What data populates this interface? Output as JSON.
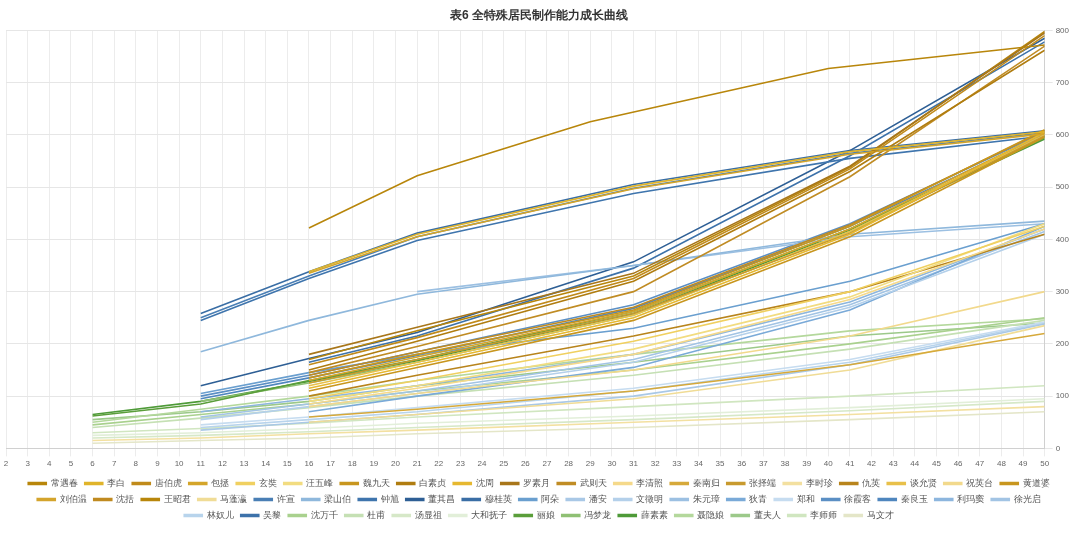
{
  "chart_data": {
    "type": "line",
    "title": "表6 全特殊居民制作能力成长曲线",
    "xlim": [
      2,
      50
    ],
    "xticks": [
      2,
      3,
      4,
      5,
      6,
      7,
      8,
      9,
      10,
      11,
      12,
      13,
      14,
      15,
      16,
      17,
      18,
      19,
      20,
      21,
      22,
      23,
      24,
      25,
      26,
      27,
      28,
      29,
      30,
      31,
      32,
      33,
      34,
      35,
      36,
      37,
      38,
      39,
      40,
      41,
      42,
      43,
      44,
      45,
      46,
      47,
      48,
      49,
      50
    ],
    "ylim": [
      0,
      800
    ],
    "yticks": [
      0,
      100,
      200,
      300,
      400,
      500,
      600,
      700,
      800
    ],
    "grid": true,
    "legend": "bottom",
    "series": [
      {
        "name": "常遇春",
        "color": "#b8860b",
        "x": [
          16,
          21,
          29,
          40,
          50
        ],
        "values": [
          422,
          522,
          625,
          727,
          772
        ]
      },
      {
        "name": "李白",
        "color": "#e0b42a",
        "x": [
          16,
          21,
          31,
          41,
          50
        ],
        "values": [
          338,
          410,
          502,
          568,
          606
        ]
      },
      {
        "name": "唐伯虎",
        "color": "#c08a1a",
        "x": [
          16,
          21,
          31,
          41,
          50
        ],
        "values": [
          160,
          212,
          325,
          535,
          790
        ]
      },
      {
        "name": "包拯",
        "color": "#d4a52a",
        "x": [
          16,
          21,
          31,
          41,
          50
        ],
        "values": [
          335,
          405,
          497,
          563,
          602
        ]
      },
      {
        "name": "玄奘",
        "color": "#f0d060",
        "x": [
          16,
          21,
          31,
          41,
          50
        ],
        "values": [
          95,
          130,
          205,
          300,
          425
        ]
      },
      {
        "name": "汪五峰",
        "color": "#f2dc80",
        "x": [
          16,
          21,
          31,
          41,
          50
        ],
        "values": [
          90,
          120,
          190,
          290,
          430
        ]
      },
      {
        "name": "魏九天",
        "color": "#c8961e",
        "x": [
          16,
          21,
          31,
          41,
          50
        ],
        "values": [
          110,
          155,
          245,
          405,
          596
        ]
      },
      {
        "name": "白素贞",
        "color": "#b07d10",
        "x": [
          16,
          21,
          31,
          41,
          50
        ],
        "values": [
          150,
          205,
          320,
          530,
          762
        ]
      },
      {
        "name": "沈周",
        "color": "#e6b830",
        "x": [
          16,
          21,
          31,
          41,
          50
        ],
        "values": [
          115,
          160,
          250,
          410,
          605
        ]
      },
      {
        "name": "罗素月",
        "color": "#a8761a",
        "x": [
          16,
          21,
          31,
          41,
          50
        ],
        "values": [
          180,
          232,
          335,
          540,
          795
        ]
      },
      {
        "name": "武则天",
        "color": "#c08c24",
        "x": [
          16,
          21,
          31,
          41,
          50
        ],
        "values": [
          145,
          195,
          300,
          520,
          770
        ]
      },
      {
        "name": "李清照",
        "color": "#f5d98a",
        "x": [
          16,
          21,
          31,
          41,
          50
        ],
        "values": [
          85,
          115,
          180,
          285,
          420
        ]
      },
      {
        "name": "秦南归",
        "color": "#d6a93a",
        "x": [
          16,
          21,
          31,
          41,
          50
        ],
        "values": [
          60,
          75,
          110,
          160,
          220
        ]
      },
      {
        "name": "张择端",
        "color": "#c89a2e",
        "x": [
          16,
          21,
          31,
          41,
          50
        ],
        "values": [
          125,
          170,
          258,
          412,
          598
        ]
      },
      {
        "name": "李时珍",
        "color": "#f3e0a0",
        "x": [
          6,
          11,
          16,
          21,
          31,
          41,
          50
        ],
        "values": [
          15,
          20,
          28,
          35,
          50,
          65,
          80
        ]
      },
      {
        "name": "仇英",
        "color": "#b8841c",
        "x": [
          16,
          21,
          31,
          41,
          50
        ],
        "values": [
          100,
          140,
          215,
          300,
          410
        ]
      },
      {
        "name": "谈允贤",
        "color": "#e8c04a",
        "x": [
          16,
          21,
          31,
          41,
          50
        ],
        "values": [
          120,
          165,
          255,
          415,
          600
        ]
      },
      {
        "name": "祝英台",
        "color": "#f2d98c",
        "x": [
          16,
          21,
          31,
          41,
          50
        ],
        "values": [
          80,
          105,
          150,
          215,
          300
        ]
      },
      {
        "name": "黄道婆",
        "color": "#c8961e",
        "x": [
          16,
          21,
          31,
          41,
          50
        ],
        "values": [
          135,
          180,
          265,
          425,
          610
        ]
      },
      {
        "name": "刘伯温",
        "color": "#d4a42c",
        "x": [
          16,
          21,
          31,
          41,
          50
        ],
        "values": [
          130,
          175,
          262,
          420,
          603
        ]
      },
      {
        "name": "沈括",
        "color": "#c08a20",
        "x": [
          16,
          21,
          31,
          41,
          50
        ],
        "values": [
          140,
          185,
          270,
          428,
          608
        ]
      },
      {
        "name": "王昭君",
        "color": "#b8860b",
        "x": [
          16,
          21,
          31,
          41,
          50
        ],
        "values": [
          170,
          225,
          330,
          538,
          798
        ]
      },
      {
        "name": "马蓬瀛",
        "color": "#f0dc96",
        "x": [
          16,
          21,
          31,
          41,
          50
        ],
        "values": [
          50,
          65,
          95,
          150,
          235
        ]
      },
      {
        "name": "许宣",
        "color": "#4a7fb5",
        "x": [
          11,
          16,
          21,
          31,
          41,
          50
        ],
        "values": [
          250,
          330,
          405,
          498,
          565,
          604
        ]
      },
      {
        "name": "梁山伯",
        "color": "#8fb8dc",
        "x": [
          11,
          16,
          21,
          31,
          41,
          50
        ],
        "values": [
          185,
          245,
          295,
          350,
          410,
          435
        ]
      },
      {
        "name": "钟馗",
        "color": "#3f75ad",
        "x": [
          11,
          16,
          21,
          31,
          41,
          50
        ],
        "values": [
          245,
          325,
          398,
          488,
          555,
          598
        ]
      },
      {
        "name": "董其昌",
        "color": "#2e5f95",
        "x": [
          11,
          16,
          21,
          31,
          41,
          50
        ],
        "values": [
          120,
          172,
          222,
          357,
          570,
          785
        ]
      },
      {
        "name": "穆桂英",
        "color": "#3a6ea5",
        "x": [
          11,
          16,
          21,
          31,
          41,
          50
        ],
        "values": [
          258,
          338,
          412,
          505,
          570,
          608
        ]
      },
      {
        "name": "阿朵",
        "color": "#6a9fcf",
        "x": [
          11,
          16,
          21,
          31,
          41,
          50
        ],
        "values": [
          105,
          145,
          180,
          230,
          320,
          430
        ]
      },
      {
        "name": "潘安",
        "color": "#a9c8e6",
        "x": [
          11,
          16,
          21,
          31,
          41,
          50
        ],
        "values": [
          35,
          50,
          65,
          100,
          160,
          238
        ]
      },
      {
        "name": "文徵明",
        "color": "#b4d0ea",
        "x": [
          11,
          16,
          21,
          31,
          41,
          50
        ],
        "values": [
          55,
          80,
          105,
          165,
          270,
          410
        ]
      },
      {
        "name": "朱元璋",
        "color": "#9cc0e2",
        "x": [
          21,
          31,
          41,
          50
        ],
        "values": [
          300,
          350,
          405,
          430
        ]
      },
      {
        "name": "狄青",
        "color": "#7aaad8",
        "x": [
          16,
          21,
          31,
          41,
          50
        ],
        "values": [
          70,
          100,
          155,
          265,
          425
        ]
      },
      {
        "name": "郑和",
        "color": "#c6dcf0",
        "x": [
          11,
          16,
          21,
          31,
          41,
          50
        ],
        "values": [
          45,
          60,
          78,
          115,
          170,
          242
        ]
      },
      {
        "name": "徐霞客",
        "color": "#5b8fc4",
        "x": [
          11,
          16,
          21,
          31,
          41,
          50
        ],
        "values": [
          100,
          140,
          185,
          275,
          430,
          605
        ]
      },
      {
        "name": "秦良玉",
        "color": "#4f86be",
        "x": [
          11,
          16,
          21,
          31,
          41,
          50
        ],
        "values": [
          95,
          135,
          178,
          268,
          425,
          600
        ]
      },
      {
        "name": "利玛窦",
        "color": "#8db6de",
        "x": [
          11,
          16,
          21,
          31,
          41,
          50
        ],
        "values": [
          70,
          95,
          120,
          180,
          280,
          420
        ]
      },
      {
        "name": "徐光启",
        "color": "#a2c4e4",
        "x": [
          11,
          16,
          21,
          31,
          41,
          50
        ],
        "values": [
          60,
          85,
          110,
          170,
          275,
          415
        ]
      },
      {
        "name": "林奴儿",
        "color": "#b8d4ec",
        "x": [
          11,
          16,
          21,
          31,
          41,
          50
        ],
        "values": [
          40,
          55,
          70,
          110,
          165,
          240
        ]
      },
      {
        "name": "吴黎",
        "color": "#3d72aa",
        "x": [
          16,
          21,
          31,
          41,
          50
        ],
        "values": [
          165,
          215,
          345,
          560,
          778
        ]
      },
      {
        "name": "沈万千",
        "color": "#a9d18e",
        "x": [
          6,
          11,
          16,
          21,
          31,
          41,
          50
        ],
        "values": [
          45,
          65,
          85,
          110,
          150,
          200,
          250
        ]
      },
      {
        "name": "杜甫",
        "color": "#c5e0b4",
        "x": [
          6,
          11,
          16,
          21,
          31,
          41,
          50
        ],
        "values": [
          40,
          58,
          78,
          100,
          140,
          190,
          245
        ]
      },
      {
        "name": "汤显祖",
        "color": "#d6e8c8",
        "x": [
          6,
          11,
          16,
          21,
          31,
          41,
          50
        ],
        "values": [
          20,
          25,
          32,
          40,
          55,
          72,
          90
        ]
      },
      {
        "name": "大和抚子",
        "color": "#e2efd9",
        "x": [
          6,
          11,
          16,
          21,
          31,
          41,
          50
        ],
        "values": [
          25,
          30,
          38,
          48,
          62,
          78,
          95
        ]
      },
      {
        "name": "丽娘",
        "color": "#5a9e3a",
        "x": [
          6,
          11,
          16,
          21,
          31,
          41,
          50
        ],
        "values": [
          62,
          85,
          130,
          170,
          262,
          420,
          595
        ]
      },
      {
        "name": "冯梦龙",
        "color": "#8fc074",
        "x": [
          11,
          16,
          21,
          31,
          41,
          50
        ],
        "values": [
          90,
          125,
          165,
          255,
          415,
          598
        ]
      },
      {
        "name": "薛素素",
        "color": "#4e9a38",
        "x": [
          6,
          11,
          16,
          21,
          31,
          41,
          50
        ],
        "values": [
          65,
          90,
          128,
          168,
          258,
          418,
          592
        ]
      },
      {
        "name": "聂隐娘",
        "color": "#b4d89c",
        "x": [
          6,
          11,
          16,
          21,
          31,
          41,
          50
        ],
        "values": [
          50,
          75,
          100,
          130,
          180,
          225,
          248
        ]
      },
      {
        "name": "董夫人",
        "color": "#9cc98a",
        "x": [
          6,
          11,
          16,
          21,
          31,
          41,
          50
        ],
        "values": [
          55,
          70,
          90,
          120,
          165,
          215,
          240
        ]
      },
      {
        "name": "李师师",
        "color": "#d0e6c0",
        "x": [
          6,
          11,
          16,
          21,
          31,
          41,
          50
        ],
        "values": [
          30,
          38,
          48,
          60,
          80,
          100,
          120
        ]
      },
      {
        "name": "马文才",
        "color": "#e4e6c8",
        "x": [
          6,
          11,
          16,
          21,
          31,
          41,
          50
        ],
        "values": [
          10,
          15,
          20,
          28,
          40,
          55,
          70
        ]
      }
    ]
  }
}
